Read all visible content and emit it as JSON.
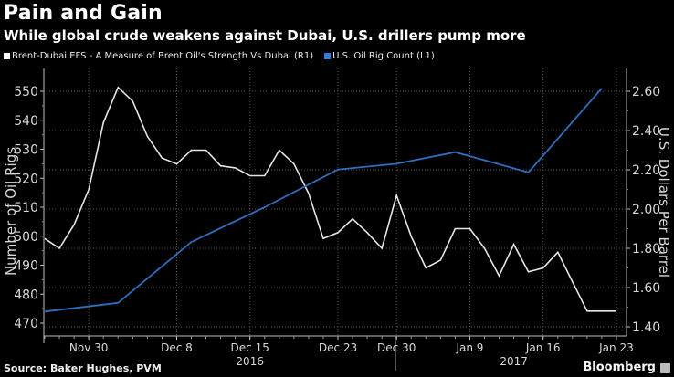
{
  "header": {
    "title": "Pain and Gain",
    "subtitle": "While global crude weakens against Dubai, U.S. drillers pump more"
  },
  "footer": {
    "source": "Source: Baker Hughes, PVM",
    "brand": "Bloomberg"
  },
  "chart_data": {
    "type": "line",
    "title": "Pain and Gain",
    "subtitle": "While global crude weakens against Dubai, U.S. drillers pump more",
    "legend_position": "top-left",
    "grid": true,
    "x_dates": [
      "Nov 25",
      "Nov 28",
      "Nov 29",
      "Nov 30",
      "Dec 1",
      "Dec 2",
      "Dec 5",
      "Dec 6",
      "Dec 7",
      "Dec 8",
      "Dec 9",
      "Dec 12",
      "Dec 13",
      "Dec 14",
      "Dec 15",
      "Dec 16",
      "Dec 19",
      "Dec 20",
      "Dec 21",
      "Dec 22",
      "Dec 23",
      "Dec 27",
      "Dec 28",
      "Dec 29",
      "Dec 30",
      "Jan 3",
      "Jan 4",
      "Jan 5",
      "Jan 6",
      "Jan 9",
      "Jan 10",
      "Jan 11",
      "Jan 12",
      "Jan 13",
      "Jan 16",
      "Jan 17",
      "Jan 18",
      "Jan 19",
      "Jan 20",
      "Jan 23",
      "Jan 24"
    ],
    "x_ticks": [
      {
        "label": "Nov 30",
        "index": 3
      },
      {
        "label": "Dec 8",
        "index": 9
      },
      {
        "label": "Dec 15",
        "index": 14
      },
      {
        "label": "Dec 23",
        "index": 20
      },
      {
        "label": "Dec 30",
        "index": 24
      },
      {
        "label": "Jan 9",
        "index": 29
      },
      {
        "label": "Jan 16",
        "index": 34
      },
      {
        "label": "Jan 23",
        "index": 39
      }
    ],
    "year_labels": [
      {
        "label": "2016",
        "index": 14
      },
      {
        "label": "2017",
        "index": 32
      }
    ],
    "year_divider_index": 24,
    "left_axis": {
      "label": "Number of Oil Rigs",
      "range": [
        470,
        550
      ],
      "ticks": [
        470,
        480,
        490,
        500,
        510,
        520,
        530,
        540,
        550
      ]
    },
    "right_axis": {
      "label": "U.S. Dollars Per Barrel",
      "range": [
        1.4,
        2.6
      ],
      "ticks": [
        "1.40",
        "1.60",
        "1.80",
        "2.00",
        "2.20",
        "2.40",
        "2.60"
      ]
    },
    "series": [
      {
        "name": "Brent-Dubai EFS - A Measure of Brent Oil's Strength Vs Dubai (R1)",
        "axis": "right",
        "color": "#e6e6e6",
        "indices": [
          0,
          1,
          2,
          3,
          4,
          5,
          6,
          7,
          8,
          9,
          10,
          11,
          12,
          13,
          14,
          15,
          16,
          17,
          18,
          19,
          20,
          21,
          22,
          23,
          24,
          25,
          26,
          27,
          28,
          29,
          30,
          31,
          32,
          33,
          34,
          35,
          36,
          37,
          38,
          39
        ],
        "values": [
          1.85,
          1.8,
          1.92,
          2.1,
          2.44,
          2.62,
          2.55,
          2.37,
          2.26,
          2.23,
          2.3,
          2.3,
          2.22,
          2.21,
          2.17,
          2.17,
          2.3,
          2.23,
          2.08,
          1.85,
          1.88,
          1.95,
          1.88,
          1.8,
          2.07,
          1.86,
          1.7,
          1.74,
          1.9,
          1.9,
          1.8,
          1.66,
          1.82,
          1.68,
          1.7,
          1.78,
          1.63,
          1.48,
          1.48,
          1.48
        ]
      },
      {
        "name": "U.S. Oil Rig Count (L1)",
        "axis": "left",
        "color": "#2f6fbf",
        "indices": [
          0,
          5,
          10,
          15,
          20,
          24,
          28,
          33,
          38
        ],
        "dates": [
          "Nov 25",
          "Dec 2",
          "Dec 9",
          "Dec 16",
          "Dec 23",
          "Dec 30",
          "Jan 6",
          "Jan 13",
          "Jan 20"
        ],
        "values": [
          474,
          477,
          498,
          510,
          523,
          525,
          529,
          522,
          551
        ]
      }
    ]
  }
}
